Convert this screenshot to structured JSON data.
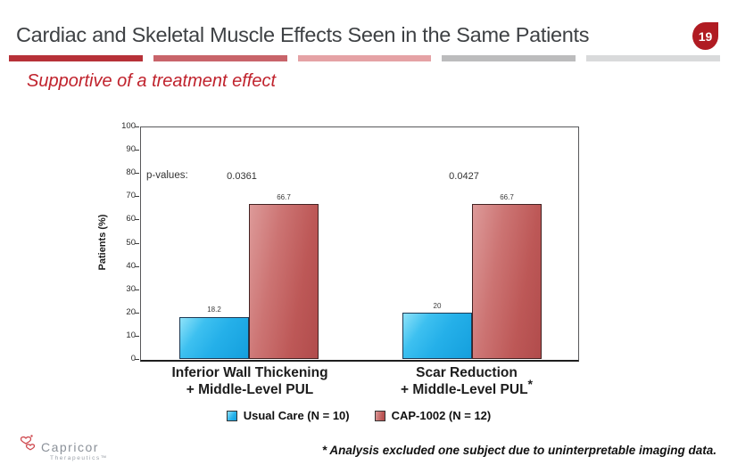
{
  "slide": {
    "title": "Cardiac and Skeletal Muscle Effects Seen in the Same Patients",
    "page_number": "19",
    "subtitle": "Supportive of a treatment effect",
    "footnote": "* Analysis excluded one subject due to uninterpretable imaging data.",
    "badge_color": "#b01b22",
    "subtitle_color": "#c0222c",
    "accent_bar_colors": [
      "#b73138",
      "#c8646a",
      "#e5a2a5",
      "#bcbcbd",
      "#d9dadb"
    ]
  },
  "logo": {
    "brand": "Capricor",
    "sub_brand": "Therapeutics",
    "trademark": "™"
  },
  "chart_data": {
    "type": "bar",
    "title": "",
    "xlabel": "",
    "ylabel": "Patients (%)",
    "ylim": [
      0,
      100
    ],
    "yticks": [
      0,
      10,
      20,
      30,
      40,
      50,
      60,
      70,
      80,
      90,
      100
    ],
    "grid": false,
    "legend_position": "bottom",
    "p_values_label": "p-values:",
    "p_values": [
      "0.0361",
      "0.0427"
    ],
    "categories": [
      {
        "line1": "Inferior Wall Thickening",
        "line2": "+ Middle-Level PUL",
        "suffix": ""
      },
      {
        "line1": "Scar Reduction",
        "line2": "+ Middle-Level PUL",
        "suffix": "*"
      }
    ],
    "series": [
      {
        "name": "Usual Care (N = 10)",
        "color": "#29b2ea",
        "values": [
          18.2,
          20
        ],
        "value_labels": [
          "18.2",
          "20"
        ]
      },
      {
        "name": "CAP-1002 (N = 12)",
        "color": "#bf5a5a",
        "values": [
          66.7,
          66.7
        ],
        "value_labels": [
          "66.7",
          "66.7"
        ]
      }
    ]
  }
}
